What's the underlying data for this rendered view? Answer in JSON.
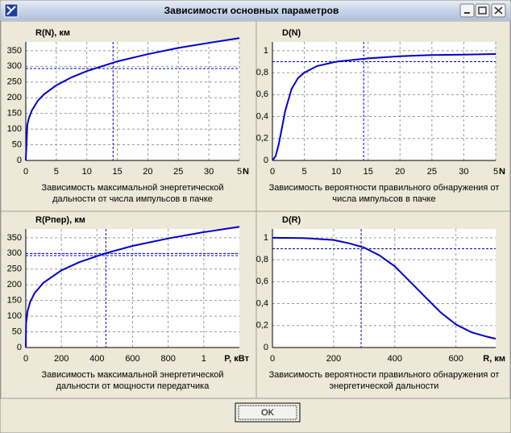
{
  "window": {
    "title": "Зависимости основных параметров"
  },
  "button": {
    "label": "OK"
  },
  "chart_data": [
    {
      "type": "line",
      "title": "R(N), км",
      "xlabel": "N",
      "caption": [
        "Зависимость максимальной энергетической",
        "дальности от числа импульсов в пачке"
      ],
      "x": [
        0,
        0.25,
        0.5,
        1,
        2,
        3,
        5,
        7.5,
        10,
        15,
        20,
        25,
        30,
        35
      ],
      "values": [
        0,
        113,
        135,
        160,
        191,
        211,
        240,
        265,
        285,
        316,
        339,
        359,
        375,
        390
      ],
      "color": "#0000c8",
      "xlim": [
        0,
        35
      ],
      "ylim": [
        0,
        378
      ],
      "xticks": [
        0,
        5,
        10,
        15,
        20,
        25,
        30,
        {
          "value": 35,
          "label": "5"
        }
      ],
      "yticks": [
        0,
        50,
        100,
        150,
        200,
        250,
        300,
        350
      ],
      "marker_x": 14.3,
      "marker_y": [
        293
      ],
      "marker_color": "#0000c8",
      "grid": true
    },
    {
      "type": "line",
      "title": "D(N)",
      "xlabel": "N",
      "caption": [
        "Зависимость вероятности правильного обнаружения от",
        "числа импульсов в пачке"
      ],
      "x": [
        0,
        0.5,
        1,
        1.5,
        2,
        3,
        4,
        5,
        7,
        10,
        15,
        20,
        25,
        30,
        35
      ],
      "values": [
        0,
        0.04,
        0.15,
        0.3,
        0.45,
        0.65,
        0.75,
        0.8,
        0.86,
        0.9,
        0.93,
        0.95,
        0.96,
        0.965,
        0.97
      ],
      "color": "#0000c8",
      "xlim": [
        0,
        35
      ],
      "ylim": [
        0,
        1.08
      ],
      "xticks": [
        0,
        5,
        10,
        15,
        20,
        25,
        30,
        {
          "value": 35,
          "label": "5"
        }
      ],
      "yticks": [
        0,
        {
          "value": 0.2,
          "label": "0,2"
        },
        {
          "value": 0.4,
          "label": "0,4"
        },
        {
          "value": 0.6,
          "label": "0,6"
        },
        {
          "value": 0.8,
          "label": "0,8"
        },
        1
      ],
      "marker_x": 14.3,
      "marker_y": [
        0.9
      ],
      "marker_color": "#0000c8",
      "grid": true
    },
    {
      "type": "line",
      "title": "R(Pпер), км",
      "xlabel": "P, кВт",
      "caption": [
        "Зависимость максимальной энергетической",
        "дальности от мощности передатчика"
      ],
      "x": [
        0,
        2,
        10,
        25,
        50,
        100,
        200,
        300,
        450,
        600,
        800,
        1000,
        1200
      ],
      "values": [
        0,
        78,
        116,
        146,
        174,
        207,
        246,
        272,
        301,
        324,
        348,
        368,
        385
      ],
      "color": "#0000c8",
      "xlim": [
        0,
        1200
      ],
      "ylim": [
        0,
        378
      ],
      "xticks": [
        0,
        200,
        400,
        600,
        800,
        {
          "value": 1000,
          "label": "1"
        }
      ],
      "yticks": [
        0,
        50,
        100,
        150,
        200,
        250,
        300,
        350
      ],
      "marker_x": 450,
      "marker_y": [
        300,
        293
      ],
      "marker_color": "#0000c8",
      "grid": true
    },
    {
      "type": "line",
      "title": "D(R)",
      "xlabel": "R, км",
      "caption": [
        "Зависимость вероятности правильного обнаружения от",
        "энергетической дальности"
      ],
      "x": [
        0,
        100,
        200,
        250,
        300,
        350,
        400,
        450,
        500,
        550,
        600,
        650,
        700,
        730
      ],
      "values": [
        1,
        0.998,
        0.98,
        0.95,
        0.91,
        0.84,
        0.74,
        0.6,
        0.46,
        0.32,
        0.21,
        0.14,
        0.1,
        0.08
      ],
      "color": "#0000c8",
      "xlim": [
        0,
        730
      ],
      "ylim": [
        0,
        1.08
      ],
      "xticks": [
        0,
        200,
        400,
        600
      ],
      "yticks": [
        0,
        {
          "value": 0.2,
          "label": "0,2"
        },
        {
          "value": 0.4,
          "label": "0,4"
        },
        {
          "value": 0.6,
          "label": "0,6"
        },
        {
          "value": 0.8,
          "label": "0,8"
        },
        1
      ],
      "marker_x": 290,
      "marker_y": [
        0.9
      ],
      "marker_color": "#0000c8",
      "grid": true
    }
  ]
}
